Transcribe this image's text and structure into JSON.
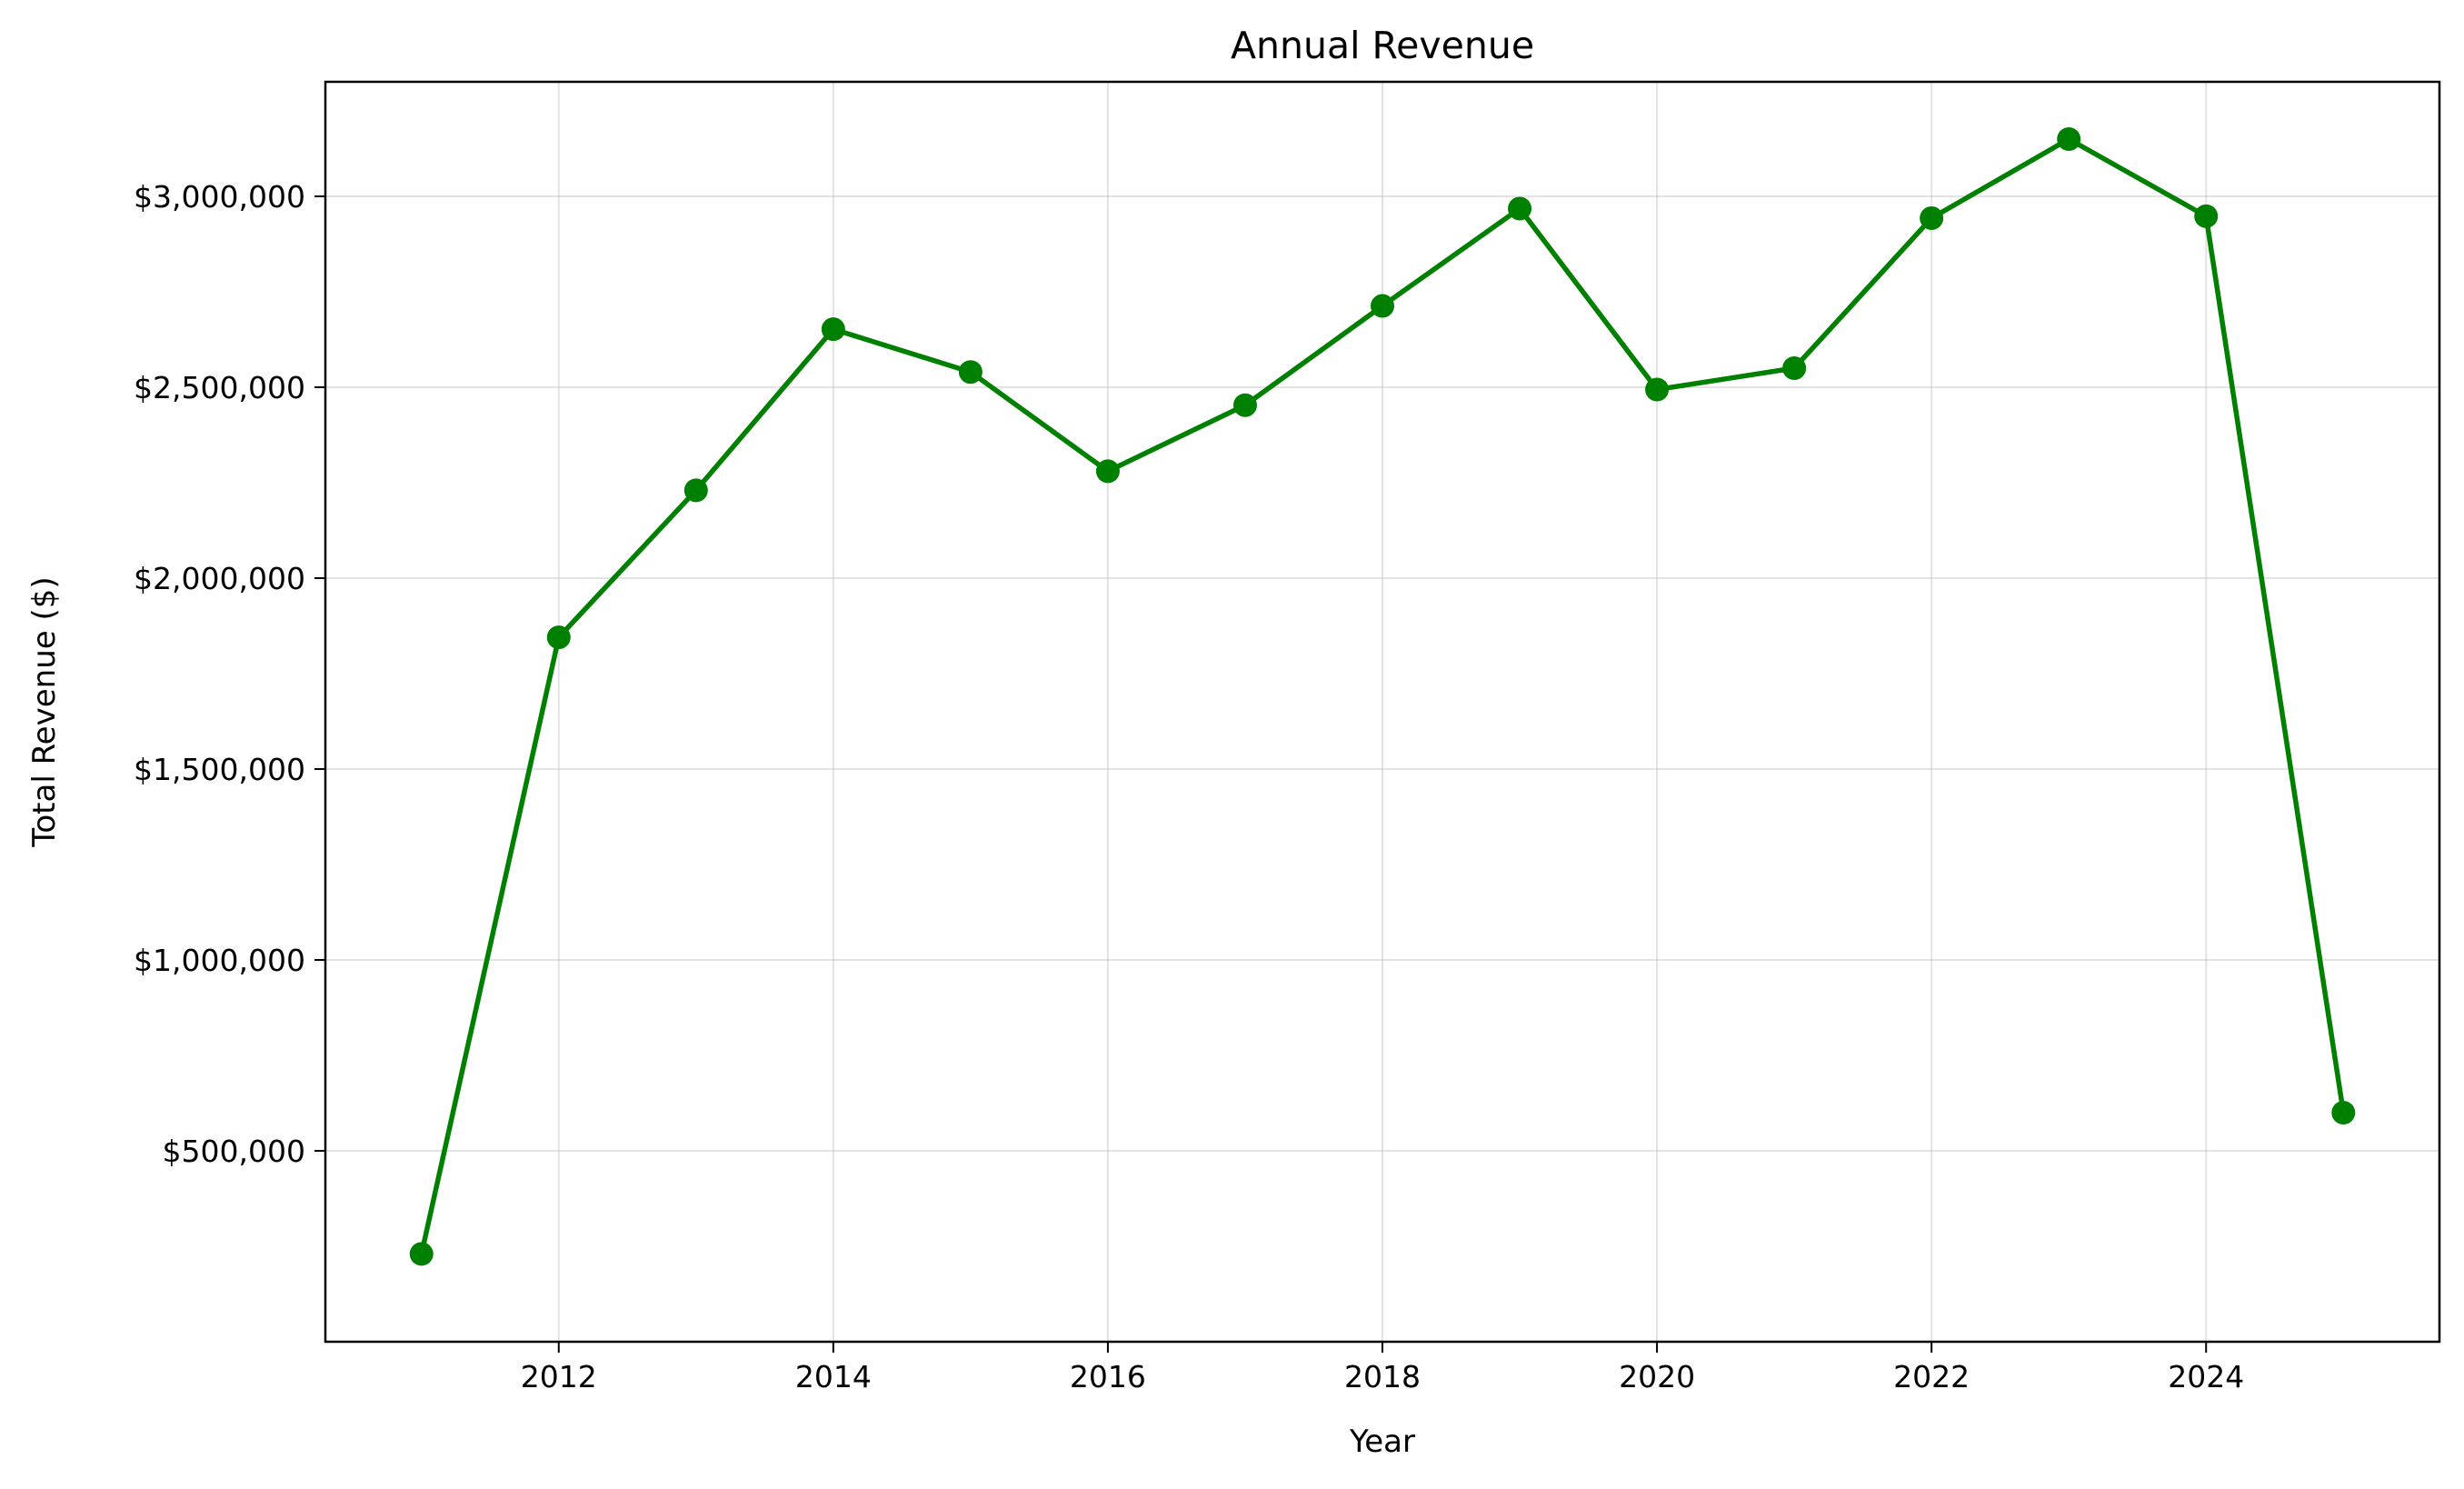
{
  "chart_data": {
    "type": "line",
    "title": "Annual Revenue",
    "xlabel": "Year",
    "ylabel": "Total Revenue ($)",
    "x": [
      2011,
      2012,
      2013,
      2014,
      2015,
      2016,
      2017,
      2018,
      2019,
      2020,
      2021,
      2022,
      2023,
      2024,
      2025
    ],
    "series": [
      {
        "values": [
          230000,
          1845000,
          2230000,
          2652000,
          2540000,
          2280000,
          2453000,
          2713000,
          2968000,
          2494000,
          2550000,
          2943000,
          3150000,
          2948000,
          600000
        ],
        "color": "#008000"
      }
    ],
    "xlim": [
      2010.3,
      2025.7
    ],
    "ylim": [
      0,
      3300000
    ],
    "xticks": [
      2012,
      2014,
      2016,
      2018,
      2020,
      2022,
      2024
    ],
    "xtick_labels": [
      "2012",
      "2014",
      "2016",
      "2018",
      "2020",
      "2022",
      "2024"
    ],
    "yticks": [
      500000,
      1000000,
      1500000,
      2000000,
      2500000,
      3000000
    ],
    "ytick_labels": [
      "$500,000",
      "$1,000,000",
      "$1,500,000",
      "$2,000,000",
      "$2,500,000",
      "$3,000,000"
    ],
    "grid": true,
    "marker": "circle"
  }
}
